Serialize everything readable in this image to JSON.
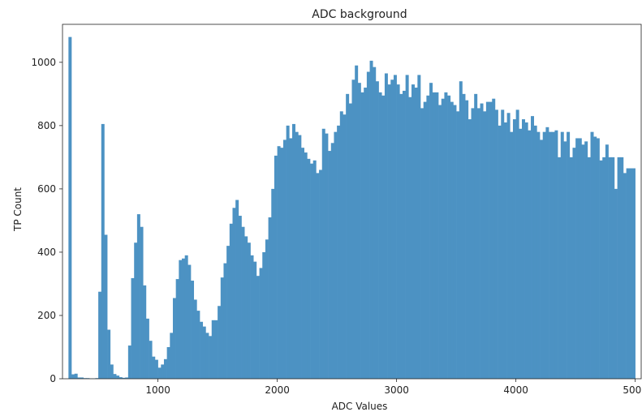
{
  "chart_data": {
    "type": "bar",
    "title": "ADC background",
    "xlabel": "ADC Values",
    "ylabel": "TP Count",
    "xlim": [
      200,
      5050
    ],
    "ylim": [
      0,
      1120
    ],
    "xticks": [
      1000,
      2000,
      3000,
      4000,
      5000
    ],
    "yticks": [
      0,
      200,
      400,
      600,
      800,
      1000
    ],
    "bar_color": "#4c92c3",
    "bin_width": 25,
    "grid": false,
    "legend": "none",
    "bins_start": [
      250,
      275,
      300,
      325,
      350,
      375,
      400,
      425,
      450,
      475,
      500,
      525,
      550,
      575,
      600,
      625,
      650,
      675,
      700,
      725,
      750,
      775,
      800,
      825,
      850,
      875,
      900,
      925,
      950,
      975,
      1000,
      1025,
      1050,
      1075,
      1100,
      1125,
      1150,
      1175,
      1200,
      1225,
      1250,
      1275,
      1300,
      1325,
      1350,
      1375,
      1400,
      1425,
      1450,
      1475,
      1500,
      1525,
      1550,
      1575,
      1600,
      1625,
      1650,
      1675,
      1700,
      1725,
      1750,
      1775,
      1800,
      1825,
      1850,
      1875,
      1900,
      1925,
      1950,
      1975,
      2000,
      2025,
      2050,
      2075,
      2100,
      2125,
      2150,
      2175,
      2200,
      2225,
      2250,
      2275,
      2300,
      2325,
      2350,
      2375,
      2400,
      2425,
      2450,
      2475,
      2500,
      2525,
      2550,
      2575,
      2600,
      2625,
      2650,
      2675,
      2700,
      2725,
      2750,
      2775,
      2800,
      2825,
      2850,
      2875,
      2900,
      2925,
      2950,
      2975,
      3000,
      3025,
      3050,
      3075,
      3100,
      3125,
      3150,
      3175,
      3200,
      3225,
      3250,
      3275,
      3300,
      3325,
      3350,
      3375,
      3400,
      3425,
      3450,
      3475,
      3500,
      3525,
      3550,
      3575,
      3600,
      3625,
      3650,
      3675,
      3700,
      3725,
      3750,
      3775,
      3800,
      3825,
      3850,
      3875,
      3900,
      3925,
      3950,
      3975,
      4000,
      4025,
      4050,
      4075,
      4100,
      4125,
      4150,
      4175,
      4200,
      4225,
      4250,
      4275,
      4300,
      4325,
      4350,
      4375,
      4400,
      4425,
      4450,
      4475,
      4500,
      4525,
      4550,
      4575,
      4600,
      4625,
      4650,
      4675,
      4700,
      4725,
      4750,
      4775,
      4800,
      4825,
      4850,
      4875,
      4900,
      4925,
      4950,
      4975
    ],
    "values": [
      1080,
      14,
      16,
      4,
      4,
      2,
      2,
      1,
      1,
      2,
      275,
      805,
      455,
      155,
      45,
      15,
      10,
      5,
      3,
      4,
      105,
      318,
      430,
      520,
      480,
      295,
      190,
      120,
      70,
      60,
      35,
      45,
      62,
      100,
      145,
      255,
      315,
      375,
      380,
      390,
      360,
      310,
      250,
      215,
      180,
      165,
      145,
      135,
      185,
      185,
      230,
      320,
      365,
      420,
      490,
      540,
      565,
      515,
      480,
      450,
      430,
      390,
      370,
      325,
      350,
      400,
      440,
      510,
      600,
      705,
      735,
      730,
      755,
      800,
      760,
      805,
      780,
      770,
      730,
      715,
      695,
      680,
      690,
      650,
      660,
      790,
      775,
      720,
      745,
      780,
      800,
      845,
      835,
      900,
      870,
      945,
      990,
      935,
      905,
      920,
      970,
      1005,
      985,
      940,
      905,
      895,
      965,
      930,
      945,
      960,
      930,
      900,
      910,
      960,
      890,
      930,
      920,
      960,
      855,
      875,
      895,
      935,
      905,
      905,
      865,
      885,
      905,
      895,
      875,
      865,
      845,
      940,
      900,
      880,
      820,
      855,
      900,
      855,
      870,
      845,
      875,
      875,
      885,
      850,
      800,
      850,
      810,
      840,
      780,
      820,
      850,
      790,
      820,
      810,
      785,
      830,
      800,
      780,
      755,
      780,
      795,
      780,
      780,
      785,
      700,
      780,
      750,
      780,
      700,
      730,
      760,
      760,
      740,
      750,
      700,
      780,
      765,
      760,
      690,
      700,
      740,
      700,
      700,
      600,
      700,
      700,
      650,
      665,
      665,
      665
    ]
  }
}
